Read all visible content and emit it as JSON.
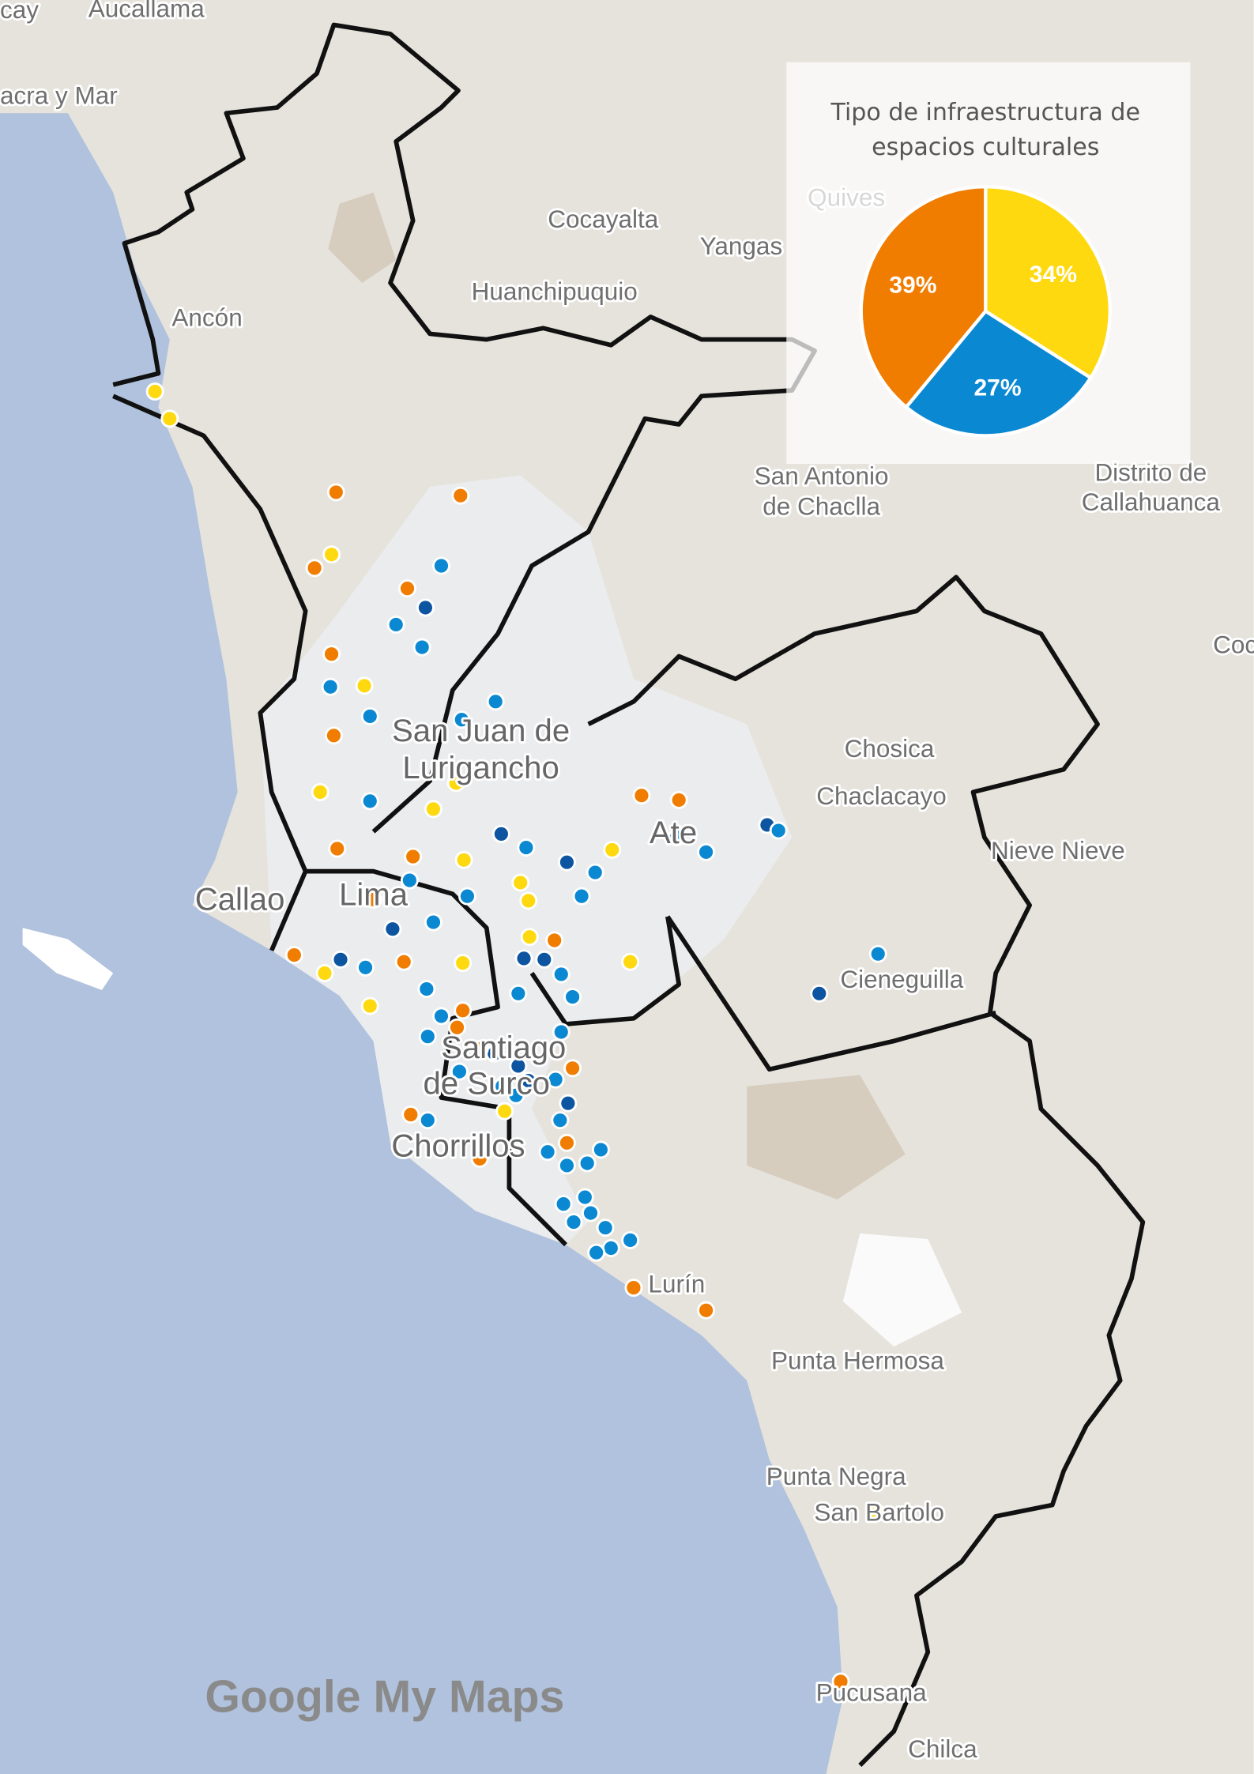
{
  "map": {
    "labels": [
      "cay",
      "Aucallama",
      "acra y Mar",
      "Cocayalta",
      "Yangas",
      "Quives",
      "Huanchipuquio",
      "Ancón",
      "San Antonio",
      "de Chaclla",
      "Distrito de",
      "Callahuanca",
      "Coc",
      "Chosica",
      "Chaclacayo",
      "San Juan de",
      "Lurigancho",
      "Ate",
      "Nieve Nieve",
      "Callao",
      "Lima",
      "Cieneguilla",
      "Santiago",
      "de Surco",
      "Chorrillos",
      "Lurín",
      "Punta Hermosa",
      "Punta Negra",
      "San Bartolo",
      "Pucusana",
      "Chilca"
    ],
    "logo": "Google My Maps"
  },
  "chart_data": {
    "type": "pie",
    "title": "Tipo de infraestructura de espacios culturales",
    "values": [
      34,
      27,
      39
    ],
    "value_labels": [
      "34%",
      "27%",
      "39%"
    ],
    "colors": [
      "#ffd90f",
      "#0a88d2",
      "#f07c00"
    ]
  }
}
